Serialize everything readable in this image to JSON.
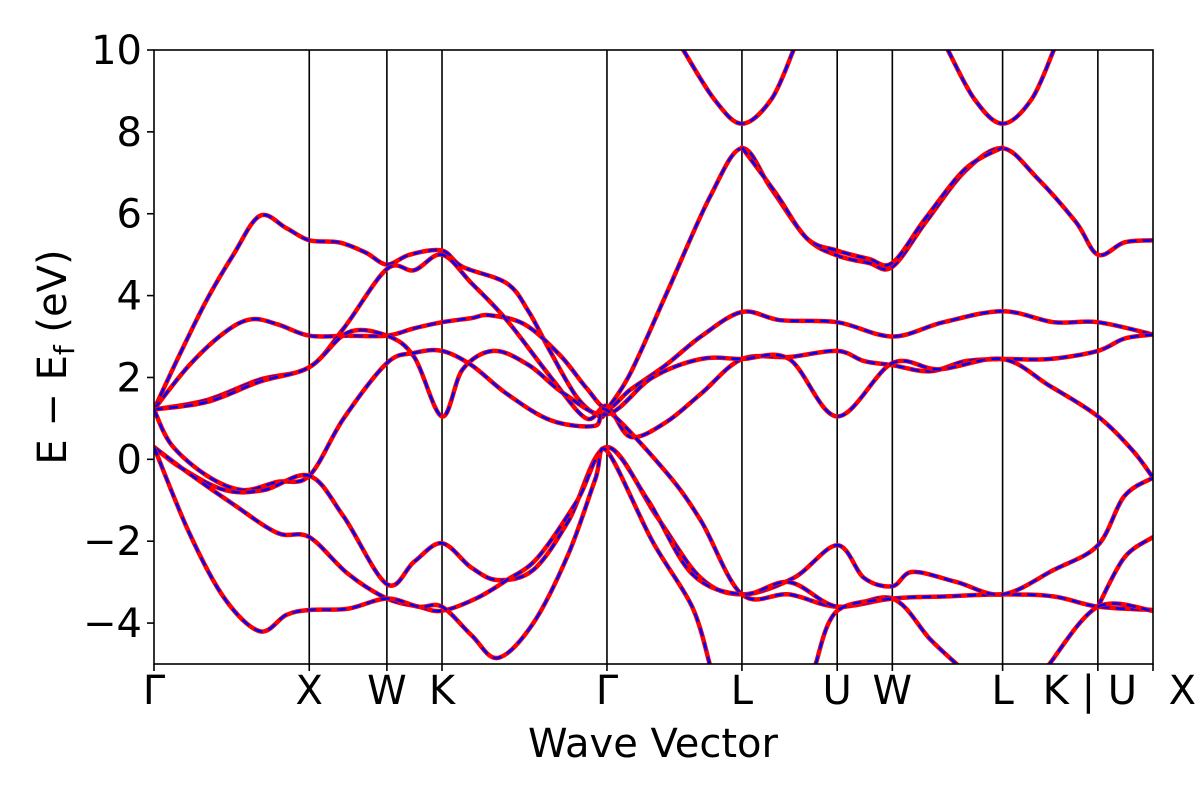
{
  "chart_data": {
    "type": "line",
    "title": "",
    "xlabel": "Wave Vector",
    "ylabel": "E − E",
    "ylabel_subscript": "f",
    "ylabel_unit": " (eV)",
    "ylim": [
      -5,
      10
    ],
    "yticks": [
      -4,
      -2,
      0,
      2,
      4,
      6,
      8,
      10
    ],
    "ytick_labels": [
      "−4",
      "−2",
      "0",
      "2",
      "4",
      "6",
      "8",
      "10"
    ],
    "k_path": {
      "ticks": [
        0,
        3.52,
        5.28,
        6.53,
        10.27,
        13.33,
        15.49,
        16.74,
        19.24,
        21.4,
        22.65
      ],
      "labels": [
        "Γ",
        "X",
        "W",
        "K",
        "Γ",
        "L",
        "U",
        "W",
        "L",
        "K | U",
        "X"
      ]
    },
    "grid": false,
    "colors": {
      "series_a": "#ff0000",
      "series_b": "#0000ff"
    },
    "line_style": "red solid curves overlaid by blue dashed curves",
    "series": [
      {
        "values": [
          [
            0,
            1.22
          ],
          [
            0.6,
            2.6
          ],
          [
            1.2,
            3.9
          ],
          [
            1.8,
            5.0
          ],
          [
            2.4,
            5.95
          ],
          [
            3.0,
            5.65
          ],
          [
            3.52,
            5.35
          ],
          [
            4.2,
            5.3
          ],
          [
            4.8,
            5.05
          ],
          [
            5.28,
            4.76
          ],
          [
            5.8,
            5.0
          ],
          [
            6.53,
            5.1
          ],
          [
            7.0,
            4.7
          ],
          [
            8.0,
            4.3
          ],
          [
            8.5,
            3.6
          ],
          [
            9.0,
            2.6
          ],
          [
            9.6,
            1.5
          ],
          [
            10.1,
            1.05
          ],
          [
            10.27,
            1.22
          ],
          [
            10.8,
            2.1
          ],
          [
            11.6,
            4.0
          ],
          [
            12.6,
            6.4
          ],
          [
            13.33,
            7.6
          ],
          [
            14.0,
            6.6
          ],
          [
            14.8,
            5.4
          ],
          [
            15.49,
            4.98
          ],
          [
            16.2,
            4.8
          ],
          [
            16.74,
            4.7
          ],
          [
            17.5,
            5.8
          ],
          [
            18.4,
            7.05
          ],
          [
            19.24,
            7.6
          ],
          [
            20.0,
            6.9
          ],
          [
            20.9,
            5.8
          ],
          [
            21.4,
            5.0
          ],
          [
            22.0,
            5.3
          ],
          [
            22.65,
            5.35
          ]
        ]
      },
      {
        "values": [
          [
            0,
            1.22
          ],
          [
            0.8,
            2.3
          ],
          [
            1.6,
            3.1
          ],
          [
            2.2,
            3.42
          ],
          [
            2.8,
            3.3
          ],
          [
            3.52,
            3.02
          ],
          [
            4.4,
            3.02
          ],
          [
            5.28,
            3.02
          ],
          [
            5.9,
            3.2
          ],
          [
            6.53,
            3.35
          ],
          [
            7.2,
            3.45
          ],
          [
            7.6,
            3.52
          ],
          [
            8.4,
            3.3
          ],
          [
            9.2,
            2.55
          ],
          [
            9.8,
            1.75
          ],
          [
            10.27,
            1.25
          ],
          [
            10.8,
            1.7
          ],
          [
            11.6,
            2.3
          ],
          [
            12.4,
            3.0
          ],
          [
            13.33,
            3.6
          ],
          [
            14.2,
            3.4
          ],
          [
            15.49,
            3.35
          ],
          [
            16.74,
            3.0
          ],
          [
            17.9,
            3.35
          ],
          [
            19.24,
            3.62
          ],
          [
            20.4,
            3.35
          ],
          [
            21.4,
            3.35
          ],
          [
            22.65,
            3.05
          ]
        ]
      },
      {
        "values": [
          [
            0,
            1.22
          ],
          [
            1.2,
            1.45
          ],
          [
            2.4,
            1.95
          ],
          [
            3.52,
            2.25
          ],
          [
            4.3,
            3.2
          ],
          [
            5.28,
            4.65
          ],
          [
            5.9,
            4.62
          ],
          [
            6.53,
            5.0
          ],
          [
            7.2,
            4.3
          ],
          [
            8.0,
            3.4
          ],
          [
            9.0,
            2.0
          ],
          [
            9.8,
            1.0
          ],
          [
            10.27,
            1.3
          ],
          [
            10.8,
            0.55
          ],
          [
            11.6,
            0.9
          ],
          [
            12.4,
            1.6
          ],
          [
            13.33,
            2.45
          ],
          [
            14.4,
            2.5
          ],
          [
            15.49,
            2.65
          ],
          [
            16.1,
            2.4
          ],
          [
            16.74,
            2.3
          ],
          [
            17.6,
            2.15
          ],
          [
            18.4,
            2.4
          ],
          [
            19.24,
            2.45
          ],
          [
            20.3,
            2.45
          ],
          [
            21.4,
            2.65
          ],
          [
            22.0,
            2.95
          ],
          [
            22.65,
            3.05
          ]
        ]
      },
      {
        "values": [
          [
            0,
            1.22
          ],
          [
            1.2,
            1.4
          ],
          [
            2.4,
            1.9
          ],
          [
            3.52,
            2.25
          ],
          [
            4.4,
            3.1
          ],
          [
            5.28,
            3.02
          ],
          [
            5.9,
            2.5
          ],
          [
            6.53,
            1.05
          ],
          [
            7.0,
            2.2
          ],
          [
            7.7,
            2.65
          ],
          [
            8.5,
            2.3
          ],
          [
            9.3,
            1.6
          ],
          [
            10.27,
            1.1
          ],
          [
            11.3,
            2.0
          ],
          [
            12.4,
            2.45
          ],
          [
            13.33,
            2.45
          ],
          [
            14.4,
            2.45
          ],
          [
            15.49,
            1.05
          ],
          [
            16.74,
            2.35
          ],
          [
            17.8,
            2.2
          ],
          [
            19.24,
            2.45
          ],
          [
            20.3,
            1.8
          ],
          [
            21.4,
            1.05
          ],
          [
            22.2,
            0.2
          ],
          [
            22.65,
            -0.45
          ]
        ]
      },
      {
        "values": [
          [
            0,
            1.22
          ],
          [
            0.4,
            0.35
          ],
          [
            1.2,
            -0.4
          ],
          [
            2.0,
            -0.75
          ],
          [
            2.8,
            -0.55
          ],
          [
            3.52,
            -0.4
          ],
          [
            4.3,
            1.0
          ],
          [
            5.28,
            2.35
          ],
          [
            5.9,
            2.6
          ],
          [
            6.53,
            2.65
          ],
          [
            7.2,
            2.3
          ],
          [
            8.0,
            1.6
          ],
          [
            9.0,
            0.95
          ],
          [
            10.0,
            0.82
          ],
          [
            10.27,
            1.2
          ],
          [
            11.6,
            -0.3
          ],
          [
            12.4,
            -1.5
          ],
          [
            13.33,
            -3.3
          ],
          [
            14.4,
            -3.3
          ],
          [
            15.49,
            -3.6
          ],
          [
            16.74,
            -3.4
          ],
          [
            17.9,
            -3.35
          ],
          [
            19.24,
            -3.3
          ],
          [
            20.4,
            -3.35
          ],
          [
            21.4,
            -3.6
          ],
          [
            22.65,
            -3.68
          ]
        ]
      },
      {
        "values": [
          [
            0,
            0.3
          ],
          [
            0.6,
            -0.2
          ],
          [
            1.6,
            -0.75
          ],
          [
            2.5,
            -0.75
          ],
          [
            3.52,
            -0.4
          ],
          [
            4.3,
            -1.4
          ],
          [
            5.28,
            -3.05
          ],
          [
            5.9,
            -2.5
          ],
          [
            6.53,
            -2.05
          ],
          [
            7.2,
            -2.65
          ],
          [
            7.8,
            -2.95
          ],
          [
            8.6,
            -2.7
          ],
          [
            9.4,
            -1.5
          ],
          [
            10.27,
            0.3
          ],
          [
            11.4,
            -1.4
          ],
          [
            12.4,
            -2.9
          ],
          [
            13.33,
            -3.3
          ],
          [
            14.5,
            -2.9
          ],
          [
            15.49,
            -2.1
          ],
          [
            16.1,
            -2.9
          ],
          [
            16.74,
            -3.1
          ],
          [
            17.2,
            -2.75
          ],
          [
            18.2,
            -3.0
          ],
          [
            19.24,
            -3.3
          ],
          [
            20.4,
            -2.7
          ],
          [
            21.4,
            -2.1
          ],
          [
            22.0,
            -0.9
          ],
          [
            22.65,
            -0.45
          ]
        ]
      },
      {
        "values": [
          [
            0,
            0.3
          ],
          [
            0.8,
            -0.35
          ],
          [
            1.8,
            -1.1
          ],
          [
            2.8,
            -1.8
          ],
          [
            3.52,
            -1.9
          ],
          [
            4.4,
            -2.8
          ],
          [
            5.28,
            -3.4
          ],
          [
            6.0,
            -3.6
          ],
          [
            6.53,
            -3.7
          ],
          [
            7.3,
            -3.4
          ],
          [
            8.0,
            -2.95
          ],
          [
            8.7,
            -2.4
          ],
          [
            9.6,
            -1.0
          ],
          [
            10.27,
            0.3
          ],
          [
            11.2,
            -1.0
          ],
          [
            12.2,
            -2.8
          ],
          [
            13.33,
            -3.3
          ],
          [
            14.4,
            -3.0
          ],
          [
            15.49,
            -3.6
          ],
          [
            16.74,
            -3.4
          ],
          [
            17.6,
            -4.4
          ],
          [
            18.3,
            -5.1
          ]
        ]
      },
      {
        "values": [
          [
            0,
            0.3
          ],
          [
            0.8,
            -1.8
          ],
          [
            1.6,
            -3.4
          ],
          [
            2.4,
            -4.2
          ],
          [
            3.0,
            -3.8
          ],
          [
            3.52,
            -3.68
          ],
          [
            4.4,
            -3.65
          ],
          [
            5.28,
            -3.4
          ],
          [
            6.0,
            -3.6
          ],
          [
            6.53,
            -3.6
          ],
          [
            7.2,
            -4.3
          ],
          [
            7.8,
            -4.85
          ],
          [
            8.6,
            -4.0
          ],
          [
            9.4,
            -2.3
          ],
          [
            10.0,
            -0.5
          ],
          [
            10.27,
            0.2
          ],
          [
            11.3,
            -2.0
          ],
          [
            12.2,
            -3.6
          ],
          [
            12.6,
            -5.0
          ]
        ]
      },
      {
        "values": [
          [
            21.4,
            -3.6
          ],
          [
            22.0,
            -2.4
          ],
          [
            22.65,
            -1.9
          ]
        ]
      },
      {
        "values": [
          [
            20.3,
            -5.0
          ],
          [
            21.4,
            -3.6
          ],
          [
            22.65,
            -3.7
          ]
        ]
      },
      {
        "values": [
          [
            15.0,
            -5.0
          ],
          [
            15.49,
            -3.7
          ],
          [
            16.74,
            -3.4
          ]
        ]
      },
      {
        "values": [
          [
            12.0,
            10.0
          ],
          [
            12.7,
            8.8
          ],
          [
            13.33,
            8.2
          ],
          [
            14.0,
            8.8
          ],
          [
            14.5,
            10.0
          ]
        ]
      },
      {
        "values": [
          [
            18.0,
            10.0
          ],
          [
            18.6,
            8.8
          ],
          [
            19.24,
            8.2
          ],
          [
            19.9,
            8.8
          ],
          [
            20.4,
            10.0
          ]
        ]
      },
      {
        "values": [
          [
            13.33,
            7.62
          ],
          [
            14.1,
            6.5
          ],
          [
            14.8,
            5.4
          ],
          [
            15.49,
            5.1
          ],
          [
            16.2,
            4.9
          ],
          [
            16.74,
            4.8
          ],
          [
            17.5,
            5.9
          ],
          [
            18.4,
            7.1
          ],
          [
            19.24,
            7.62
          ]
        ]
      }
    ]
  }
}
